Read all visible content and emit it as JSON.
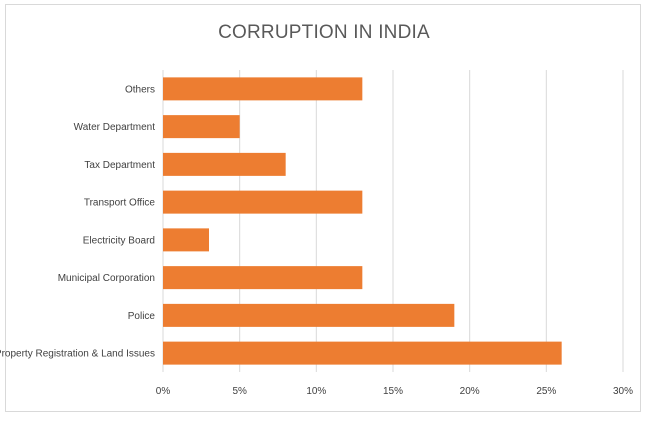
{
  "chart_data": {
    "type": "bar",
    "orientation": "horizontal",
    "title": "CORRUPTION IN INDIA",
    "xlabel": "",
    "ylabel": "",
    "categories": [
      "Property Registration & Land Issues",
      "Police",
      "Municipal Corporation",
      "Electricity Board",
      "Transport Office",
      "Tax Department",
      "Water Department",
      "Others"
    ],
    "values": [
      26,
      19,
      13,
      3,
      13,
      8,
      5,
      13
    ],
    "value_unit": "%",
    "xlim": [
      0,
      30
    ],
    "xticks": [
      "0%",
      "5%",
      "10%",
      "15%",
      "20%",
      "25%",
      "30%"
    ],
    "tick_values": [
      0,
      5,
      10,
      15,
      20,
      25,
      30
    ],
    "grid": "vertical",
    "legend": "none",
    "bar_color": "#ed7d31",
    "grid_color": "#d9d9d9",
    "text_color": "#404040"
  }
}
